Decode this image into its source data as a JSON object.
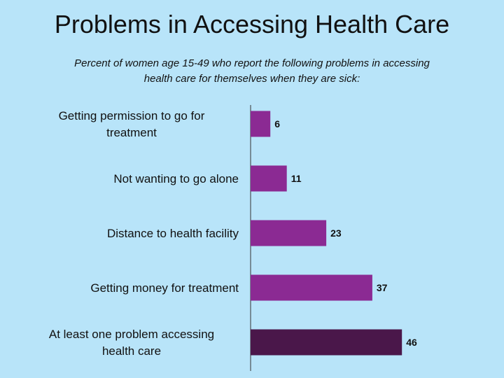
{
  "chart_data": {
    "type": "bar",
    "orientation": "horizontal",
    "title": "Problems in Accessing Health Care",
    "subtitle": "Percent of women age 15-49 who report the following problems in accessing health care for themselves when they are sick:",
    "categories": [
      "Getting permission to go for treatment",
      "Not wanting to go alone",
      "Distance to health facility",
      "Getting money for treatment",
      "At least one problem accessing health care"
    ],
    "values": [
      6,
      11,
      23,
      37,
      46
    ],
    "xlim": [
      0,
      50
    ],
    "grid": false,
    "legend": "none",
    "colors": {
      "bar": "#8b2a93",
      "highlight_bar": "#4a174a",
      "background": "#b8e4f9",
      "axis": "#333333",
      "text": "#111111"
    }
  }
}
